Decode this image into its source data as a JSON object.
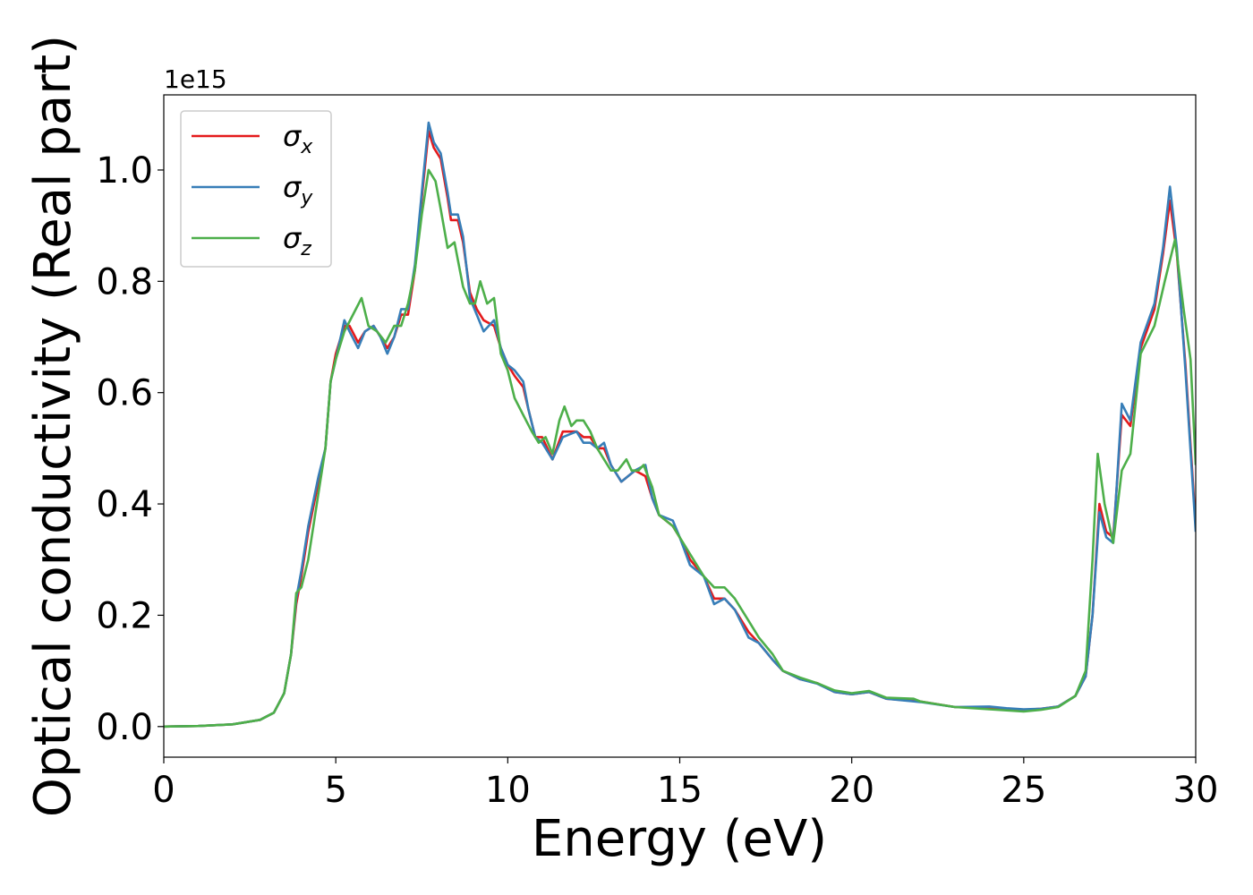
{
  "chart_data": {
    "type": "line",
    "xlabel": "Energy (eV)",
    "ylabel": "Optical conductivity (Real part)",
    "offset_label": "1e15",
    "xlim": [
      0,
      30
    ],
    "ylim": [
      -0.055,
      1.135
    ],
    "xticks": [
      0,
      5,
      10,
      15,
      20,
      25,
      30
    ],
    "yticks": [
      0.0,
      0.2,
      0.4,
      0.6,
      0.8,
      1.0
    ],
    "xtick_labels": [
      "0",
      "5",
      "10",
      "15",
      "20",
      "25",
      "30"
    ],
    "ytick_labels": [
      "0.0",
      "0.2",
      "0.4",
      "0.6",
      "0.8",
      "1.0"
    ],
    "grid": false,
    "legend_position": "top-left",
    "series": [
      {
        "name": "σx",
        "symbol": "σ",
        "subscript": "x",
        "color": "#e41a1c",
        "points": [
          [
            0,
            0.0
          ],
          [
            1,
            0.001
          ],
          [
            2,
            0.004
          ],
          [
            2.8,
            0.012
          ],
          [
            3.2,
            0.025
          ],
          [
            3.5,
            0.06
          ],
          [
            3.7,
            0.13
          ],
          [
            3.85,
            0.22
          ],
          [
            4.0,
            0.27
          ],
          [
            4.2,
            0.35
          ],
          [
            4.5,
            0.44
          ],
          [
            4.7,
            0.5
          ],
          [
            4.85,
            0.62
          ],
          [
            5.0,
            0.67
          ],
          [
            5.25,
            0.72
          ],
          [
            5.4,
            0.72
          ],
          [
            5.65,
            0.69
          ],
          [
            5.85,
            0.71
          ],
          [
            6.1,
            0.72
          ],
          [
            6.3,
            0.7
          ],
          [
            6.5,
            0.68
          ],
          [
            6.7,
            0.7
          ],
          [
            6.9,
            0.74
          ],
          [
            7.1,
            0.74
          ],
          [
            7.3,
            0.82
          ],
          [
            7.5,
            0.95
          ],
          [
            7.7,
            1.07
          ],
          [
            7.85,
            1.04
          ],
          [
            8.05,
            1.02
          ],
          [
            8.25,
            0.95
          ],
          [
            8.35,
            0.91
          ],
          [
            8.55,
            0.91
          ],
          [
            8.7,
            0.87
          ],
          [
            8.9,
            0.78
          ],
          [
            9.1,
            0.75
          ],
          [
            9.3,
            0.73
          ],
          [
            9.6,
            0.72
          ],
          [
            9.8,
            0.68
          ],
          [
            10.0,
            0.65
          ],
          [
            10.2,
            0.63
          ],
          [
            10.45,
            0.61
          ],
          [
            10.6,
            0.57
          ],
          [
            10.8,
            0.52
          ],
          [
            11.0,
            0.52
          ],
          [
            11.3,
            0.48
          ],
          [
            11.6,
            0.53
          ],
          [
            12.0,
            0.53
          ],
          [
            12.2,
            0.52
          ],
          [
            12.4,
            0.52
          ],
          [
            12.6,
            0.5
          ],
          [
            12.8,
            0.5
          ],
          [
            13.0,
            0.47
          ],
          [
            13.3,
            0.44
          ],
          [
            13.7,
            0.46
          ],
          [
            14.0,
            0.45
          ],
          [
            14.2,
            0.41
          ],
          [
            14.4,
            0.38
          ],
          [
            14.8,
            0.36
          ],
          [
            15.0,
            0.34
          ],
          [
            15.3,
            0.3
          ],
          [
            15.7,
            0.27
          ],
          [
            16.0,
            0.23
          ],
          [
            16.3,
            0.23
          ],
          [
            16.6,
            0.21
          ],
          [
            17.0,
            0.17
          ],
          [
            17.3,
            0.15
          ],
          [
            17.7,
            0.12
          ],
          [
            18.0,
            0.1
          ],
          [
            18.5,
            0.085
          ],
          [
            19.0,
            0.078
          ],
          [
            19.5,
            0.062
          ],
          [
            20.0,
            0.058
          ],
          [
            20.5,
            0.062
          ],
          [
            21.0,
            0.05
          ],
          [
            22.0,
            0.045
          ],
          [
            23.0,
            0.035
          ],
          [
            24.0,
            0.034
          ],
          [
            24.5,
            0.032
          ],
          [
            25.0,
            0.03
          ],
          [
            25.5,
            0.032
          ],
          [
            26.0,
            0.036
          ],
          [
            26.5,
            0.055
          ],
          [
            26.8,
            0.09
          ],
          [
            27.0,
            0.2
          ],
          [
            27.2,
            0.4
          ],
          [
            27.4,
            0.35
          ],
          [
            27.6,
            0.34
          ],
          [
            27.85,
            0.56
          ],
          [
            28.1,
            0.54
          ],
          [
            28.4,
            0.68
          ],
          [
            28.8,
            0.75
          ],
          [
            29.05,
            0.85
          ],
          [
            29.25,
            0.945
          ],
          [
            29.45,
            0.85
          ],
          [
            29.7,
            0.65
          ],
          [
            30.0,
            0.36
          ]
        ]
      },
      {
        "name": "σy",
        "symbol": "σ",
        "subscript": "y",
        "color": "#377eb8",
        "points": [
          [
            0,
            0.0
          ],
          [
            1,
            0.001
          ],
          [
            2,
            0.004
          ],
          [
            2.8,
            0.012
          ],
          [
            3.2,
            0.025
          ],
          [
            3.5,
            0.06
          ],
          [
            3.7,
            0.13
          ],
          [
            3.85,
            0.23
          ],
          [
            4.0,
            0.28
          ],
          [
            4.2,
            0.36
          ],
          [
            4.5,
            0.45
          ],
          [
            4.7,
            0.5
          ],
          [
            4.85,
            0.62
          ],
          [
            5.0,
            0.66
          ],
          [
            5.25,
            0.73
          ],
          [
            5.4,
            0.71
          ],
          [
            5.65,
            0.68
          ],
          [
            5.85,
            0.71
          ],
          [
            6.1,
            0.72
          ],
          [
            6.3,
            0.7
          ],
          [
            6.5,
            0.67
          ],
          [
            6.7,
            0.7
          ],
          [
            6.9,
            0.75
          ],
          [
            7.1,
            0.75
          ],
          [
            7.3,
            0.83
          ],
          [
            7.5,
            0.96
          ],
          [
            7.7,
            1.085
          ],
          [
            7.85,
            1.05
          ],
          [
            8.05,
            1.03
          ],
          [
            8.25,
            0.96
          ],
          [
            8.35,
            0.92
          ],
          [
            8.55,
            0.92
          ],
          [
            8.7,
            0.88
          ],
          [
            8.9,
            0.77
          ],
          [
            9.1,
            0.74
          ],
          [
            9.3,
            0.71
          ],
          [
            9.6,
            0.73
          ],
          [
            9.8,
            0.68
          ],
          [
            10.0,
            0.65
          ],
          [
            10.2,
            0.64
          ],
          [
            10.45,
            0.62
          ],
          [
            10.6,
            0.57
          ],
          [
            10.8,
            0.52
          ],
          [
            11.0,
            0.51
          ],
          [
            11.3,
            0.48
          ],
          [
            11.6,
            0.52
          ],
          [
            12.0,
            0.53
          ],
          [
            12.2,
            0.51
          ],
          [
            12.4,
            0.51
          ],
          [
            12.6,
            0.5
          ],
          [
            12.8,
            0.51
          ],
          [
            13.0,
            0.47
          ],
          [
            13.3,
            0.44
          ],
          [
            13.7,
            0.46
          ],
          [
            14.0,
            0.47
          ],
          [
            14.2,
            0.41
          ],
          [
            14.4,
            0.38
          ],
          [
            14.8,
            0.37
          ],
          [
            15.0,
            0.34
          ],
          [
            15.3,
            0.29
          ],
          [
            15.7,
            0.27
          ],
          [
            16.0,
            0.22
          ],
          [
            16.3,
            0.23
          ],
          [
            16.6,
            0.21
          ],
          [
            17.0,
            0.16
          ],
          [
            17.3,
            0.15
          ],
          [
            17.7,
            0.12
          ],
          [
            18.0,
            0.1
          ],
          [
            18.5,
            0.085
          ],
          [
            19.0,
            0.077
          ],
          [
            19.5,
            0.062
          ],
          [
            20.0,
            0.058
          ],
          [
            20.5,
            0.062
          ],
          [
            21.0,
            0.05
          ],
          [
            22.0,
            0.044
          ],
          [
            23.0,
            0.035
          ],
          [
            24.0,
            0.036
          ],
          [
            24.5,
            0.033
          ],
          [
            25.0,
            0.031
          ],
          [
            25.5,
            0.032
          ],
          [
            26.0,
            0.036
          ],
          [
            26.5,
            0.055
          ],
          [
            26.8,
            0.09
          ],
          [
            27.0,
            0.2
          ],
          [
            27.2,
            0.385
          ],
          [
            27.4,
            0.34
          ],
          [
            27.6,
            0.33
          ],
          [
            27.85,
            0.58
          ],
          [
            28.1,
            0.55
          ],
          [
            28.4,
            0.69
          ],
          [
            28.8,
            0.76
          ],
          [
            29.05,
            0.86
          ],
          [
            29.25,
            0.97
          ],
          [
            29.45,
            0.86
          ],
          [
            29.7,
            0.64
          ],
          [
            30.0,
            0.35
          ]
        ]
      },
      {
        "name": "σz",
        "symbol": "σ",
        "subscript": "z",
        "color": "#4daf4a",
        "points": [
          [
            0,
            0.0
          ],
          [
            1,
            0.001
          ],
          [
            2,
            0.004
          ],
          [
            2.8,
            0.012
          ],
          [
            3.2,
            0.025
          ],
          [
            3.5,
            0.06
          ],
          [
            3.7,
            0.13
          ],
          [
            3.85,
            0.24
          ],
          [
            4.0,
            0.25
          ],
          [
            4.2,
            0.3
          ],
          [
            4.5,
            0.42
          ],
          [
            4.7,
            0.5
          ],
          [
            4.85,
            0.62
          ],
          [
            5.0,
            0.66
          ],
          [
            5.25,
            0.71
          ],
          [
            5.5,
            0.74
          ],
          [
            5.75,
            0.77
          ],
          [
            5.95,
            0.72
          ],
          [
            6.2,
            0.71
          ],
          [
            6.45,
            0.69
          ],
          [
            6.7,
            0.72
          ],
          [
            6.9,
            0.72
          ],
          [
            7.1,
            0.76
          ],
          [
            7.3,
            0.82
          ],
          [
            7.5,
            0.92
          ],
          [
            7.7,
            1.0
          ],
          [
            7.9,
            0.98
          ],
          [
            8.05,
            0.93
          ],
          [
            8.25,
            0.86
          ],
          [
            8.45,
            0.87
          ],
          [
            8.7,
            0.79
          ],
          [
            8.9,
            0.76
          ],
          [
            9.05,
            0.76
          ],
          [
            9.2,
            0.8
          ],
          [
            9.4,
            0.76
          ],
          [
            9.6,
            0.77
          ],
          [
            9.8,
            0.67
          ],
          [
            10.0,
            0.64
          ],
          [
            10.2,
            0.59
          ],
          [
            10.45,
            0.56
          ],
          [
            10.7,
            0.53
          ],
          [
            10.9,
            0.51
          ],
          [
            11.1,
            0.52
          ],
          [
            11.3,
            0.49
          ],
          [
            11.5,
            0.55
          ],
          [
            11.65,
            0.575
          ],
          [
            11.85,
            0.54
          ],
          [
            12.0,
            0.55
          ],
          [
            12.2,
            0.55
          ],
          [
            12.4,
            0.53
          ],
          [
            12.6,
            0.5
          ],
          [
            12.8,
            0.48
          ],
          [
            13.0,
            0.46
          ],
          [
            13.2,
            0.46
          ],
          [
            13.45,
            0.48
          ],
          [
            13.6,
            0.46
          ],
          [
            13.8,
            0.46
          ],
          [
            13.95,
            0.47
          ],
          [
            14.2,
            0.43
          ],
          [
            14.4,
            0.38
          ],
          [
            14.8,
            0.36
          ],
          [
            15.0,
            0.34
          ],
          [
            15.3,
            0.31
          ],
          [
            15.7,
            0.27
          ],
          [
            16.0,
            0.25
          ],
          [
            16.3,
            0.25
          ],
          [
            16.6,
            0.23
          ],
          [
            17.0,
            0.19
          ],
          [
            17.3,
            0.16
          ],
          [
            17.7,
            0.13
          ],
          [
            18.0,
            0.1
          ],
          [
            18.5,
            0.088
          ],
          [
            19.0,
            0.078
          ],
          [
            19.5,
            0.065
          ],
          [
            20.0,
            0.06
          ],
          [
            20.5,
            0.064
          ],
          [
            21.0,
            0.052
          ],
          [
            21.8,
            0.05
          ],
          [
            22.0,
            0.045
          ],
          [
            23.0,
            0.035
          ],
          [
            24.0,
            0.031
          ],
          [
            25.0,
            0.027
          ],
          [
            25.5,
            0.03
          ],
          [
            26.0,
            0.035
          ],
          [
            26.5,
            0.055
          ],
          [
            26.8,
            0.1
          ],
          [
            27.0,
            0.3
          ],
          [
            27.15,
            0.49
          ],
          [
            27.35,
            0.4
          ],
          [
            27.6,
            0.33
          ],
          [
            27.85,
            0.46
          ],
          [
            28.1,
            0.49
          ],
          [
            28.4,
            0.67
          ],
          [
            28.8,
            0.72
          ],
          [
            29.1,
            0.8
          ],
          [
            29.4,
            0.875
          ],
          [
            29.65,
            0.75
          ],
          [
            29.85,
            0.66
          ],
          [
            30.0,
            0.47
          ]
        ]
      }
    ]
  }
}
